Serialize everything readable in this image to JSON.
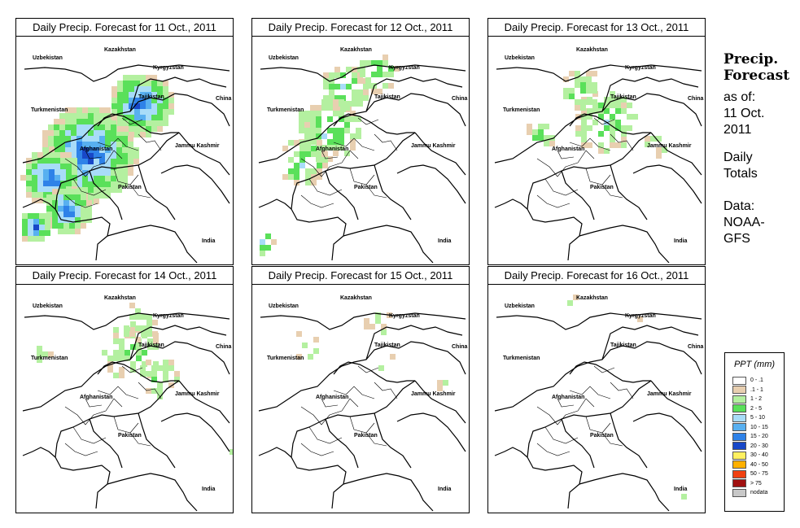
{
  "panels": [
    {
      "title": "Daily Precip. Forecast for  11 Oct., 2011",
      "coverage": 0.9
    },
    {
      "title": "Daily Precip. Forecast for  12 Oct., 2011",
      "coverage": 0.45
    },
    {
      "title": "Daily Precip. Forecast for  13 Oct., 2011",
      "coverage": 0.35
    },
    {
      "title": "Daily Precip. Forecast for  14 Oct., 2011",
      "coverage": 0.3
    },
    {
      "title": "Daily Precip. Forecast for  15 Oct., 2011",
      "coverage": 0.12
    },
    {
      "title": "Daily Precip. Forecast for  16 Oct., 2011",
      "coverage": 0.08
    }
  ],
  "map_labels": {
    "kazakhstan": "Kazakhstan",
    "uzbekistan": "Uzbekistan",
    "kyrgyzstan": "Kyrgyzstan",
    "tajikistan": "Tajikistan",
    "turkmenistan": "Turkmenistan",
    "china": "China",
    "afghanistan": "Afghanistan",
    "jammu_kashmir": "Jammu Kashmir",
    "pakistan": "Pakistan",
    "india": "India"
  },
  "side": {
    "title_line1": "Precip.",
    "title_line2": "Forecast",
    "asof_line1": "as of:",
    "asof_line2": "11 Oct.",
    "asof_line3": "2011",
    "totals_line1": "Daily",
    "totals_line2": "Totals",
    "data_line1": "Data:",
    "data_line2": "NOAA-",
    "data_line3": "GFS"
  },
  "legend": {
    "title": "PPT (mm)",
    "items": [
      {
        "label": "0 - .1",
        "color": "#ffffff"
      },
      {
        "label": ".1 - 1",
        "color": "#e8cfb0"
      },
      {
        "label": "1 - 2",
        "color": "#b4f0a0"
      },
      {
        "label": "2 - 5",
        "color": "#5ae05a"
      },
      {
        "label": "5 - 10",
        "color": "#a8dcf8"
      },
      {
        "label": "10 - 15",
        "color": "#58b0f0"
      },
      {
        "label": "15 - 20",
        "color": "#2e82e8"
      },
      {
        "label": "20 - 30",
        "color": "#1848c8"
      },
      {
        "label": "30 - 40",
        "color": "#fff060"
      },
      {
        "label": "40 - 50",
        "color": "#ffb000"
      },
      {
        "label": "50 - 75",
        "color": "#f04010"
      },
      {
        "label": "> 75",
        "color": "#a01010"
      },
      {
        "label": "nodata",
        "color": "#c8c8c8"
      }
    ]
  }
}
